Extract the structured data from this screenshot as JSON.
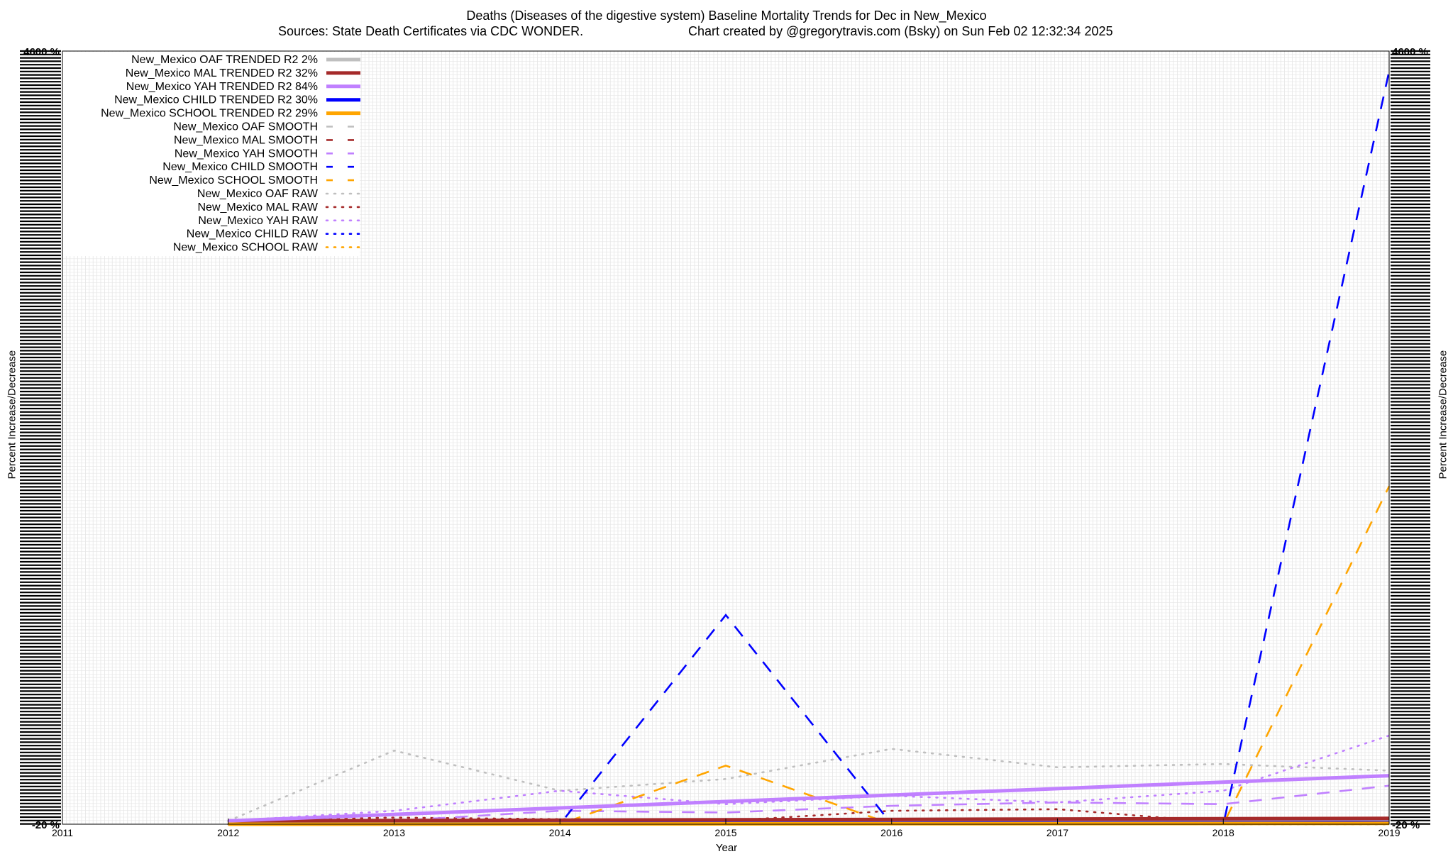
{
  "title_line1": "Deaths (Diseases of the digestive system)  Baseline Mortality Trends for Dec in New_Mexico",
  "title_line2_left": "Sources: State Death Certificates via CDC WONDER.",
  "title_line2_right": "Chart created by @gregorytravis.com (Bsky) on Sun Feb 02 12:32:34 2025",
  "colors": {
    "OAF": "#bfbfbf",
    "MAL": "#a52a2a",
    "YAH": "#c080ff",
    "CHILD": "#0000ff",
    "SCHOOL": "#ffa500"
  },
  "chart_data": {
    "type": "line",
    "title": "Deaths (Diseases of the digestive system)  Baseline Mortality Trends for Dec in New_Mexico",
    "xlabel": "Year",
    "ylabel": "Percent Increase/Decrease",
    "xlim": [
      2011,
      2019
    ],
    "ylim": [
      -20,
      4600
    ],
    "grid": true,
    "legend_position": "top-left",
    "x_ticks": [
      "2011",
      "2012",
      "2013",
      "2014",
      "2015",
      "2016",
      "2017",
      "2018",
      "2019"
    ],
    "y_tick_visible_labels": [
      "-20 %",
      "4600 %"
    ],
    "legend": [
      {
        "label": "New_Mexico OAF TRENDED R2",
        "r2": "2%",
        "series": "OAF",
        "style": "solid"
      },
      {
        "label": "New_Mexico MAL TRENDED R2",
        "r2": "32%",
        "series": "MAL",
        "style": "solid"
      },
      {
        "label": "New_Mexico YAH TRENDED R2",
        "r2": "84%",
        "series": "YAH",
        "style": "solid"
      },
      {
        "label": "New_Mexico CHILD TRENDED R2",
        "r2": "30%",
        "series": "CHILD",
        "style": "solid"
      },
      {
        "label": "New_Mexico SCHOOL TRENDED R2",
        "r2": "29%",
        "series": "SCHOOL",
        "style": "solid"
      },
      {
        "label": "New_Mexico OAF SMOOTH",
        "r2": "",
        "series": "OAF",
        "style": "dash"
      },
      {
        "label": "New_Mexico MAL SMOOTH",
        "r2": "",
        "series": "MAL",
        "style": "dash"
      },
      {
        "label": "New_Mexico YAH SMOOTH",
        "r2": "",
        "series": "YAH",
        "style": "dash"
      },
      {
        "label": "New_Mexico CHILD SMOOTH",
        "r2": "",
        "series": "CHILD",
        "style": "dash"
      },
      {
        "label": "New_Mexico SCHOOL SMOOTH",
        "r2": "",
        "series": "SCHOOL",
        "style": "dash"
      },
      {
        "label": "New_Mexico OAF RAW",
        "r2": "",
        "series": "OAF",
        "style": "dot"
      },
      {
        "label": "New_Mexico MAL RAW",
        "r2": "",
        "series": "MAL",
        "style": "dot"
      },
      {
        "label": "New_Mexico YAH RAW",
        "r2": "",
        "series": "YAH",
        "style": "dot"
      },
      {
        "label": "New_Mexico CHILD RAW",
        "r2": "",
        "series": "CHILD",
        "style": "dot"
      },
      {
        "label": "New_Mexico SCHOOL RAW",
        "r2": "",
        "series": "SCHOOL",
        "style": "dot"
      }
    ],
    "series": [
      {
        "name": "New_Mexico OAF TRENDED R2",
        "color_key": "OAF",
        "style": "solid",
        "x": [
          2012,
          2019
        ],
        "y": [
          0,
          10
        ]
      },
      {
        "name": "New_Mexico MAL TRENDED R2",
        "color_key": "MAL",
        "style": "solid",
        "x": [
          2012,
          2019
        ],
        "y": [
          0,
          15
        ]
      },
      {
        "name": "New_Mexico YAH TRENDED R2",
        "color_key": "YAH",
        "style": "solid",
        "x": [
          2012,
          2019
        ],
        "y": [
          0,
          270
        ]
      },
      {
        "name": "New_Mexico CHILD TRENDED R2",
        "color_key": "CHILD",
        "style": "solid",
        "x": [
          2012,
          2019
        ],
        "y": [
          -20,
          -10
        ]
      },
      {
        "name": "New_Mexico SCHOOL TRENDED R2",
        "color_key": "SCHOOL",
        "style": "solid",
        "x": [
          2012,
          2019
        ],
        "y": [
          -20,
          -15
        ]
      },
      {
        "name": "New_Mexico OAF SMOOTH",
        "color_key": "OAF",
        "style": "dash",
        "x": [
          2012,
          2013,
          2014,
          2015,
          2016,
          2017,
          2018,
          2019
        ],
        "y": [
          0,
          0,
          0,
          0,
          0,
          0,
          0,
          0
        ]
      },
      {
        "name": "New_Mexico MAL SMOOTH",
        "color_key": "MAL",
        "style": "dash",
        "x": [
          2012,
          2013,
          2014,
          2015,
          2016,
          2017,
          2018,
          2019
        ],
        "y": [
          0,
          -20,
          -20,
          -20,
          -20,
          -20,
          -15,
          -5
        ]
      },
      {
        "name": "New_Mexico YAH SMOOTH",
        "color_key": "YAH",
        "style": "dash",
        "x": [
          2012,
          2012.5,
          2013,
          2014,
          2015,
          2016,
          2017,
          2018,
          2019
        ],
        "y": [
          0,
          -20,
          0,
          60,
          50,
          90,
          110,
          100,
          210
        ]
      },
      {
        "name": "New_Mexico CHILD SMOOTH",
        "color_key": "CHILD",
        "style": "dash",
        "x": [
          2012,
          2013,
          2014,
          2015,
          2016,
          2017,
          2018,
          2019
        ],
        "y": [
          -20,
          -20,
          -20,
          1230,
          -20,
          -20,
          -20,
          4480
        ]
      },
      {
        "name": "New_Mexico SCHOOL SMOOTH",
        "color_key": "SCHOOL",
        "style": "dash",
        "x": [
          2012,
          2013,
          2014,
          2015,
          2016,
          2017,
          2018,
          2019
        ],
        "y": [
          -20,
          -20,
          -20,
          330,
          -20,
          -20,
          -20,
          2000
        ]
      },
      {
        "name": "New_Mexico OAF RAW",
        "color_key": "OAF",
        "style": "dot",
        "x": [
          2012,
          2013,
          2014,
          2015,
          2016,
          2017,
          2018,
          2019
        ],
        "y": [
          0,
          420,
          180,
          250,
          430,
          320,
          340,
          300
        ]
      },
      {
        "name": "New_Mexico MAL RAW",
        "color_key": "MAL",
        "style": "dot",
        "x": [
          2012,
          2013,
          2014,
          2015,
          2016,
          2017,
          2018,
          2019
        ],
        "y": [
          0,
          20,
          10,
          0,
          60,
          70,
          -10,
          20
        ]
      },
      {
        "name": "New_Mexico YAH RAW",
        "color_key": "YAH",
        "style": "dot",
        "x": [
          2012,
          2013,
          2014,
          2015,
          2016,
          2017,
          2018,
          2019
        ],
        "y": [
          0,
          60,
          180,
          100,
          150,
          110,
          180,
          510
        ]
      },
      {
        "name": "New_Mexico CHILD RAW",
        "color_key": "CHILD",
        "style": "dot",
        "x": [
          2012,
          2013,
          2014,
          2015,
          2016,
          2017,
          2018,
          2019
        ],
        "y": [
          -20,
          -20,
          -20,
          -20,
          -20,
          -20,
          -20,
          -20
        ]
      },
      {
        "name": "New_Mexico SCHOOL RAW",
        "color_key": "SCHOOL",
        "style": "dot",
        "x": [
          2012,
          2013,
          2014,
          2015,
          2016,
          2017,
          2018,
          2019
        ],
        "y": [
          -20,
          -20,
          -20,
          -20,
          -20,
          -20,
          -20,
          -20
        ]
      }
    ]
  }
}
